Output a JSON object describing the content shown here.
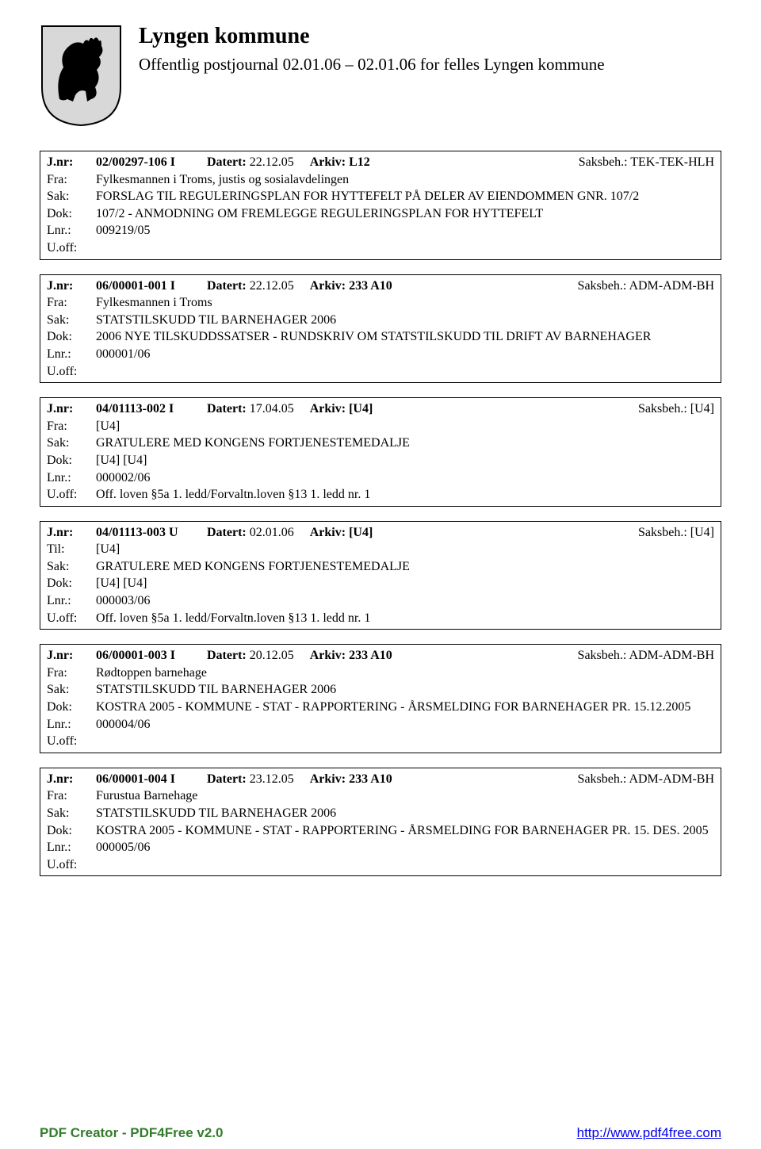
{
  "header": {
    "title": "Lyngen kommune",
    "subtitle": "Offentlig postjournal 02.01.06 – 02.01.06 for felles Lyngen kommune"
  },
  "entries": [
    {
      "jnr_label": "J.nr:",
      "jnr": "02/00297-106 I",
      "datert_label": "Datert:",
      "datert": "22.12.05",
      "arkiv_label": "Arkiv:",
      "arkiv": "L12",
      "saksbeh": "Saksbeh.: TEK-TEK-HLH",
      "rows": [
        {
          "label": "Fra:",
          "text": "Fylkesmannen i Troms, justis og sosialavdelingen"
        },
        {
          "label": "Sak:",
          "text": "FORSLAG TIL REGULERINGSPLAN FOR HYTTEFELT PÅ DELER AV EIENDOMMEN GNR. 107/2"
        },
        {
          "label": "Dok:",
          "text": "107/2 - ANMODNING OM FREMLEGGE REGULERINGSPLAN FOR HYTTEFELT"
        },
        {
          "label": "Lnr.:",
          "text": "009219/05"
        },
        {
          "label": "U.off:",
          "text": ""
        }
      ]
    },
    {
      "jnr_label": "J.nr:",
      "jnr": "06/00001-001 I",
      "datert_label": "Datert:",
      "datert": "22.12.05",
      "arkiv_label": "Arkiv:",
      "arkiv": "233 A10",
      "saksbeh": "Saksbeh.: ADM-ADM-BH",
      "rows": [
        {
          "label": "Fra:",
          "text": "Fylkesmannen i Troms"
        },
        {
          "label": "Sak:",
          "text": "STATSTILSKUDD TIL BARNEHAGER 2006"
        },
        {
          "label": "Dok:",
          "text": "2006 NYE TILSKUDDSSATSER - RUNDSKRIV OM STATSTILSKUDD TIL DRIFT AV BARNEHAGER"
        },
        {
          "label": "Lnr.:",
          "text": "000001/06"
        },
        {
          "label": "U.off:",
          "text": ""
        }
      ]
    },
    {
      "jnr_label": "J.nr:",
      "jnr": "04/01113-002 I",
      "datert_label": "Datert:",
      "datert": "17.04.05",
      "arkiv_label": "Arkiv:",
      "arkiv": "[U4]",
      "saksbeh": "Saksbeh.: [U4]",
      "rows": [
        {
          "label": "Fra:",
          "text": "[U4]"
        },
        {
          "label": "Sak:",
          "text": "GRATULERE MED KONGENS FORTJENESTEMEDALJE"
        },
        {
          "label": "Dok:",
          "text": "[U4] [U4]"
        },
        {
          "label": "Lnr.:",
          "text": "000002/06"
        },
        {
          "label": "U.off:",
          "text": "Off. loven §5a 1. ledd/Forvaltn.loven §13 1. ledd nr. 1"
        }
      ]
    },
    {
      "jnr_label": "J.nr:",
      "jnr": "04/01113-003 U",
      "datert_label": "Datert:",
      "datert": "02.01.06",
      "arkiv_label": "Arkiv:",
      "arkiv": "[U4]",
      "saksbeh": "Saksbeh.: [U4]",
      "rows": [
        {
          "label": "Til:",
          "text": "[U4]"
        },
        {
          "label": "Sak:",
          "text": "GRATULERE MED KONGENS FORTJENESTEMEDALJE"
        },
        {
          "label": "Dok:",
          "text": "[U4] [U4]"
        },
        {
          "label": "Lnr.:",
          "text": "000003/06"
        },
        {
          "label": "U.off:",
          "text": "Off. loven §5a 1. ledd/Forvaltn.loven §13 1. ledd nr. 1"
        }
      ]
    },
    {
      "jnr_label": "J.nr:",
      "jnr": "06/00001-003 I",
      "datert_label": "Datert:",
      "datert": "20.12.05",
      "arkiv_label": "Arkiv:",
      "arkiv": "233 A10",
      "saksbeh": "Saksbeh.: ADM-ADM-BH",
      "rows": [
        {
          "label": "Fra:",
          "text": "Rødtoppen barnehage"
        },
        {
          "label": "Sak:",
          "text": "STATSTILSKUDD TIL BARNEHAGER 2006"
        },
        {
          "label": "Dok:",
          "text": "KOSTRA 2005 - KOMMUNE - STAT - RAPPORTERING -  ÅRSMELDING FOR BARNEHAGER PR. 15.12.2005"
        },
        {
          "label": "Lnr.:",
          "text": "000004/06"
        },
        {
          "label": "U.off:",
          "text": ""
        }
      ]
    },
    {
      "jnr_label": "J.nr:",
      "jnr": "06/00001-004 I",
      "datert_label": "Datert:",
      "datert": "23.12.05",
      "arkiv_label": "Arkiv:",
      "arkiv": "233 A10",
      "saksbeh": "Saksbeh.: ADM-ADM-BH",
      "rows": [
        {
          "label": "Fra:",
          "text": "Furustua Barnehage"
        },
        {
          "label": "Sak:",
          "text": "STATSTILSKUDD TIL BARNEHAGER 2006"
        },
        {
          "label": "Dok:",
          "text": "KOSTRA 2005 - KOMMUNE - STAT - RAPPORTERING - ÅRSMELDING  FOR BARNEHAGER  PR. 15. DES. 2005"
        },
        {
          "label": "Lnr.:",
          "text": "000005/06"
        },
        {
          "label": "U.off:",
          "text": ""
        }
      ]
    }
  ],
  "footer": {
    "left": "PDF Creator - PDF4Free v2.0",
    "right": "http://www.pdf4free.com"
  }
}
